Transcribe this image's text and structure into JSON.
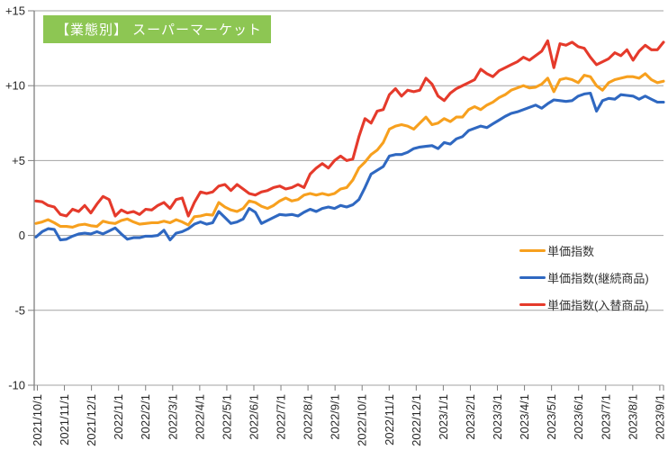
{
  "title": "【業態別】 スーパーマーケット",
  "colors": {
    "title_bg": "#8DC653",
    "title_text": "#FFFFFF",
    "orange": "#F7A01E",
    "blue": "#2F68C1",
    "red": "#E53A2B",
    "grid": "#A3A3A3",
    "axis": "#7F7F7F",
    "axis_text": "#262626"
  },
  "chart_data": {
    "type": "line",
    "title": "【業態別】 スーパーマーケット",
    "ylim": [
      -10,
      15
    ],
    "grid": "horizontal",
    "legend_position": "right-middle",
    "y_tick_labels": [
      "+15",
      "+10",
      "+5",
      "0",
      "-5",
      "-10"
    ],
    "y_tick_values": [
      15,
      10,
      5,
      0,
      -5,
      -10
    ],
    "x_tick_labels": [
      "2021/10/1",
      "2021/11/1",
      "2021/12/1",
      "2022/1/1",
      "2022/2/1",
      "2022/3/1",
      "2022/4/1",
      "2022/5/1",
      "2022/6/1",
      "2022/7/1",
      "2022/8/1",
      "2022/9/1",
      "2022/10/1",
      "2022/11/1",
      "2022/12/1",
      "2023/1/1",
      "2023/2/1",
      "2023/3/1",
      "2023/4/1",
      "2023/5/1",
      "2023/6/1",
      "2023/7/1",
      "2023/8/1",
      "2023/9/1"
    ],
    "x_unit": "weekly",
    "series": [
      {
        "name": "単価指数",
        "color_key": "orange",
        "values": [
          0.8,
          0.9,
          1.05,
          0.85,
          0.6,
          0.6,
          0.55,
          0.7,
          0.75,
          0.65,
          0.6,
          0.95,
          0.85,
          0.8,
          1.0,
          1.1,
          0.9,
          0.75,
          0.8,
          0.85,
          0.85,
          0.95,
          0.85,
          1.05,
          0.9,
          0.7,
          1.25,
          1.3,
          1.4,
          1.35,
          2.2,
          1.9,
          1.7,
          1.6,
          1.8,
          2.3,
          2.2,
          1.95,
          1.8,
          2.0,
          2.3,
          2.5,
          2.3,
          2.4,
          2.7,
          2.8,
          2.7,
          2.8,
          2.7,
          2.8,
          3.1,
          3.2,
          3.7,
          4.5,
          4.9,
          5.4,
          5.7,
          6.2,
          7.1,
          7.3,
          7.4,
          7.3,
          7.1,
          7.5,
          7.9,
          7.4,
          7.5,
          7.8,
          7.6,
          7.9,
          7.9,
          8.4,
          8.6,
          8.4,
          8.7,
          8.9,
          9.2,
          9.4,
          9.7,
          9.85,
          10.0,
          9.85,
          9.9,
          10.1,
          10.5,
          9.6,
          10.4,
          10.5,
          10.4,
          10.2,
          10.7,
          10.6,
          10.0,
          9.7,
          10.2,
          10.4,
          10.5,
          10.6,
          10.6,
          10.5,
          10.8,
          10.4,
          10.2,
          10.3
        ]
      },
      {
        "name": "単価指数(継続商品)",
        "color_key": "blue",
        "values": [
          -0.1,
          0.25,
          0.45,
          0.4,
          -0.3,
          -0.25,
          -0.05,
          0.1,
          0.15,
          0.1,
          0.25,
          0.1,
          0.3,
          0.5,
          0.1,
          -0.25,
          -0.15,
          -0.15,
          -0.05,
          -0.05,
          0.0,
          0.35,
          -0.3,
          0.15,
          0.25,
          0.45,
          0.75,
          0.9,
          0.75,
          0.85,
          1.6,
          1.2,
          0.8,
          0.9,
          1.1,
          1.8,
          1.55,
          0.8,
          1.0,
          1.2,
          1.4,
          1.35,
          1.4,
          1.3,
          1.55,
          1.75,
          1.6,
          1.8,
          1.9,
          1.8,
          2.0,
          1.9,
          2.05,
          2.4,
          3.2,
          4.1,
          4.35,
          4.6,
          5.3,
          5.4,
          5.4,
          5.55,
          5.8,
          5.9,
          5.95,
          6.0,
          5.8,
          6.2,
          6.1,
          6.45,
          6.6,
          7.0,
          7.15,
          7.3,
          7.2,
          7.45,
          7.7,
          7.95,
          8.15,
          8.25,
          8.4,
          8.55,
          8.7,
          8.5,
          8.8,
          9.05,
          9.0,
          8.95,
          9.0,
          9.3,
          9.45,
          9.5,
          8.3,
          9.0,
          9.15,
          9.1,
          9.4,
          9.35,
          9.3,
          9.1,
          9.3,
          9.1,
          8.9,
          8.9
        ]
      },
      {
        "name": "単価指数(入替商品)",
        "color_key": "red",
        "values": [
          2.3,
          2.25,
          2.0,
          1.9,
          1.4,
          1.3,
          1.75,
          1.6,
          2.0,
          1.5,
          2.1,
          2.6,
          2.4,
          1.3,
          1.7,
          1.5,
          1.6,
          1.4,
          1.75,
          1.7,
          2.0,
          2.2,
          1.8,
          2.4,
          2.5,
          1.3,
          2.2,
          2.9,
          2.8,
          2.9,
          3.3,
          3.4,
          3.0,
          3.4,
          3.1,
          2.8,
          2.7,
          2.9,
          3.0,
          3.2,
          3.3,
          3.1,
          3.2,
          3.4,
          3.2,
          4.1,
          4.5,
          4.8,
          4.5,
          5.0,
          5.3,
          5.0,
          5.1,
          6.6,
          7.8,
          7.5,
          8.3,
          8.4,
          9.4,
          9.8,
          9.3,
          9.7,
          9.6,
          9.7,
          10.5,
          10.1,
          9.3,
          9.0,
          9.5,
          9.8,
          10.0,
          10.2,
          10.4,
          11.1,
          10.8,
          10.6,
          11.0,
          11.2,
          11.4,
          11.6,
          11.9,
          11.7,
          12.0,
          12.3,
          13.0,
          11.2,
          12.8,
          12.7,
          12.9,
          12.6,
          12.5,
          11.9,
          11.4,
          11.6,
          11.8,
          12.2,
          12.0,
          12.4,
          11.7,
          12.3,
          12.7,
          12.4,
          12.4,
          12.9
        ]
      }
    ],
    "legend_draw_order": [
      0,
      1,
      2
    ]
  }
}
